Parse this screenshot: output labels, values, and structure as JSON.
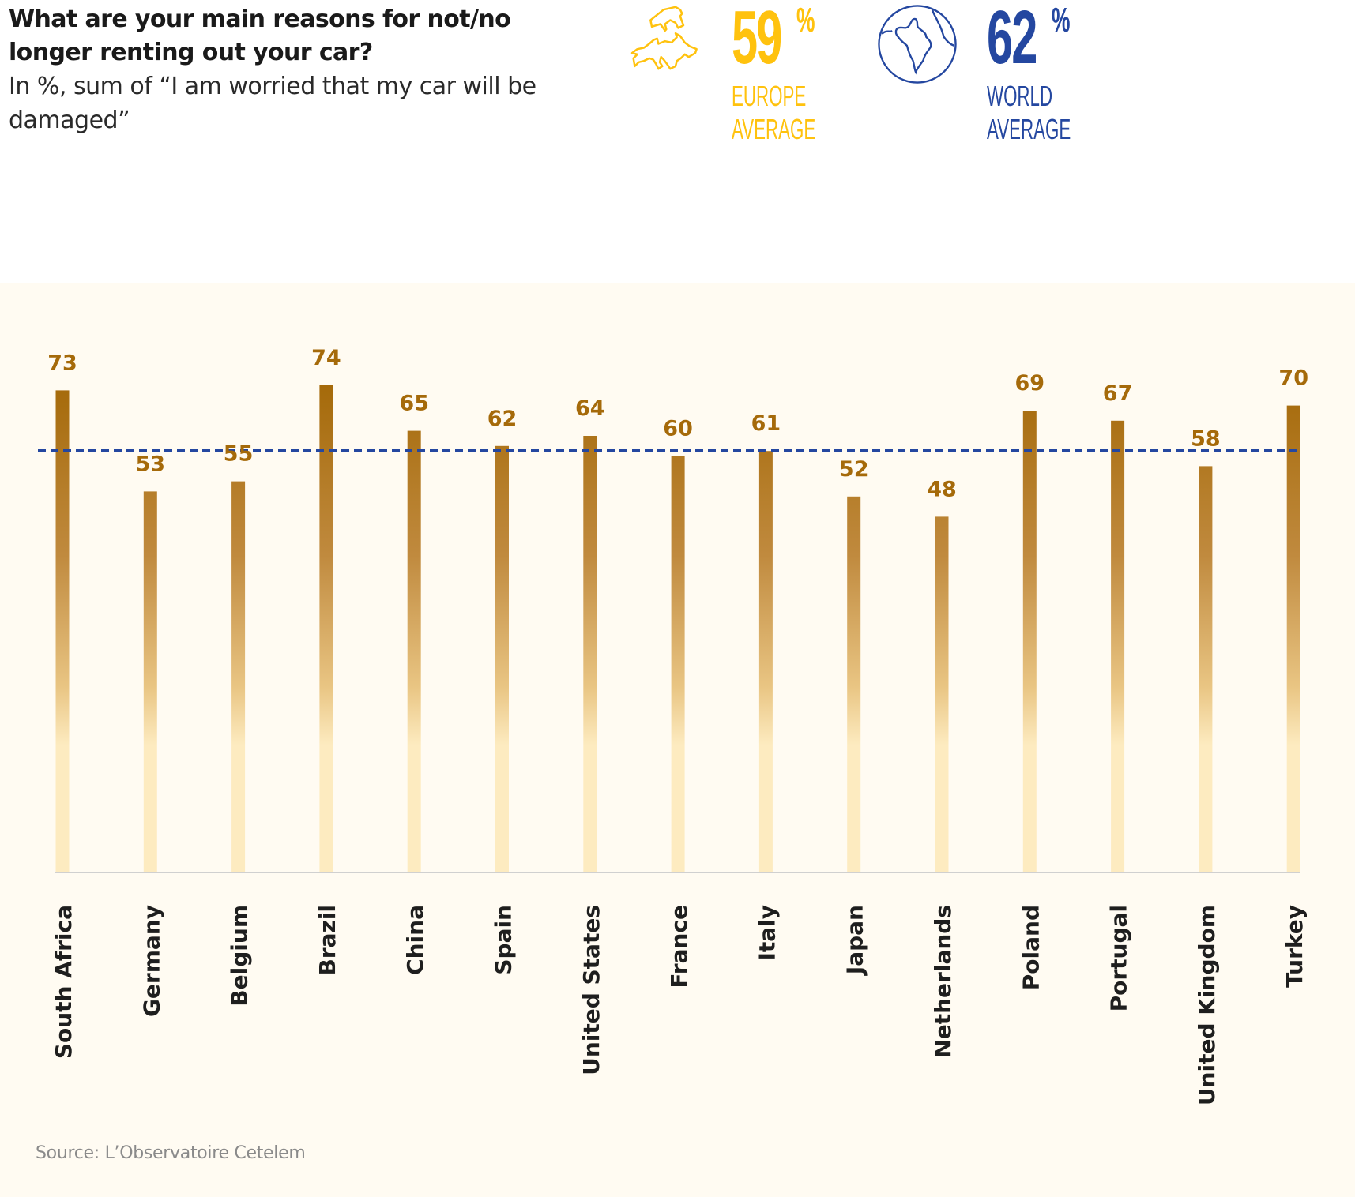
{
  "header": {
    "title": "What are your main reasons for not/no longer renting out your car?",
    "subtitle": "In %, sum of “I am worried that my car will be damaged”"
  },
  "averages": {
    "europe": {
      "value": "59",
      "unit": "%",
      "label_line1": "EUROPE",
      "label_line2": "AVERAGE",
      "icon": "europe-map-icon",
      "color": "#FFC20E"
    },
    "world": {
      "value": "62",
      "unit": "%",
      "label_line1": "WORLD",
      "label_line2": "AVERAGE",
      "icon": "globe-icon",
      "color": "#2447A0"
    }
  },
  "footer": {
    "source": "Source: L’Observatoire Cetelem"
  },
  "chart_data": {
    "type": "bar",
    "title": "What are your main reasons for not/no longer renting out your car?",
    "subtitle": "In %, sum of “I am worried that my car will be damaged”",
    "xlabel": "",
    "ylabel": "%",
    "categories": [
      "South Africa",
      "Germany",
      "Belgium",
      "Brazil",
      "China",
      "Spain",
      "United States",
      "France",
      "Italy",
      "Japan",
      "Netherlands",
      "Poland",
      "Portugal",
      "United Kingdom",
      "Turkey"
    ],
    "values": [
      73,
      53,
      55,
      74,
      65,
      62,
      64,
      60,
      61,
      52,
      48,
      69,
      67,
      58,
      70
    ],
    "reference_lines": [
      {
        "name": "World average",
        "value": 62,
        "style": "dashed",
        "color": "#2447A0"
      }
    ],
    "bar_color_top": "#A56A0A",
    "bar_color_bottom": "#FDEBC0",
    "label_color": "#A56A0A",
    "grid": false,
    "legend": "none"
  }
}
